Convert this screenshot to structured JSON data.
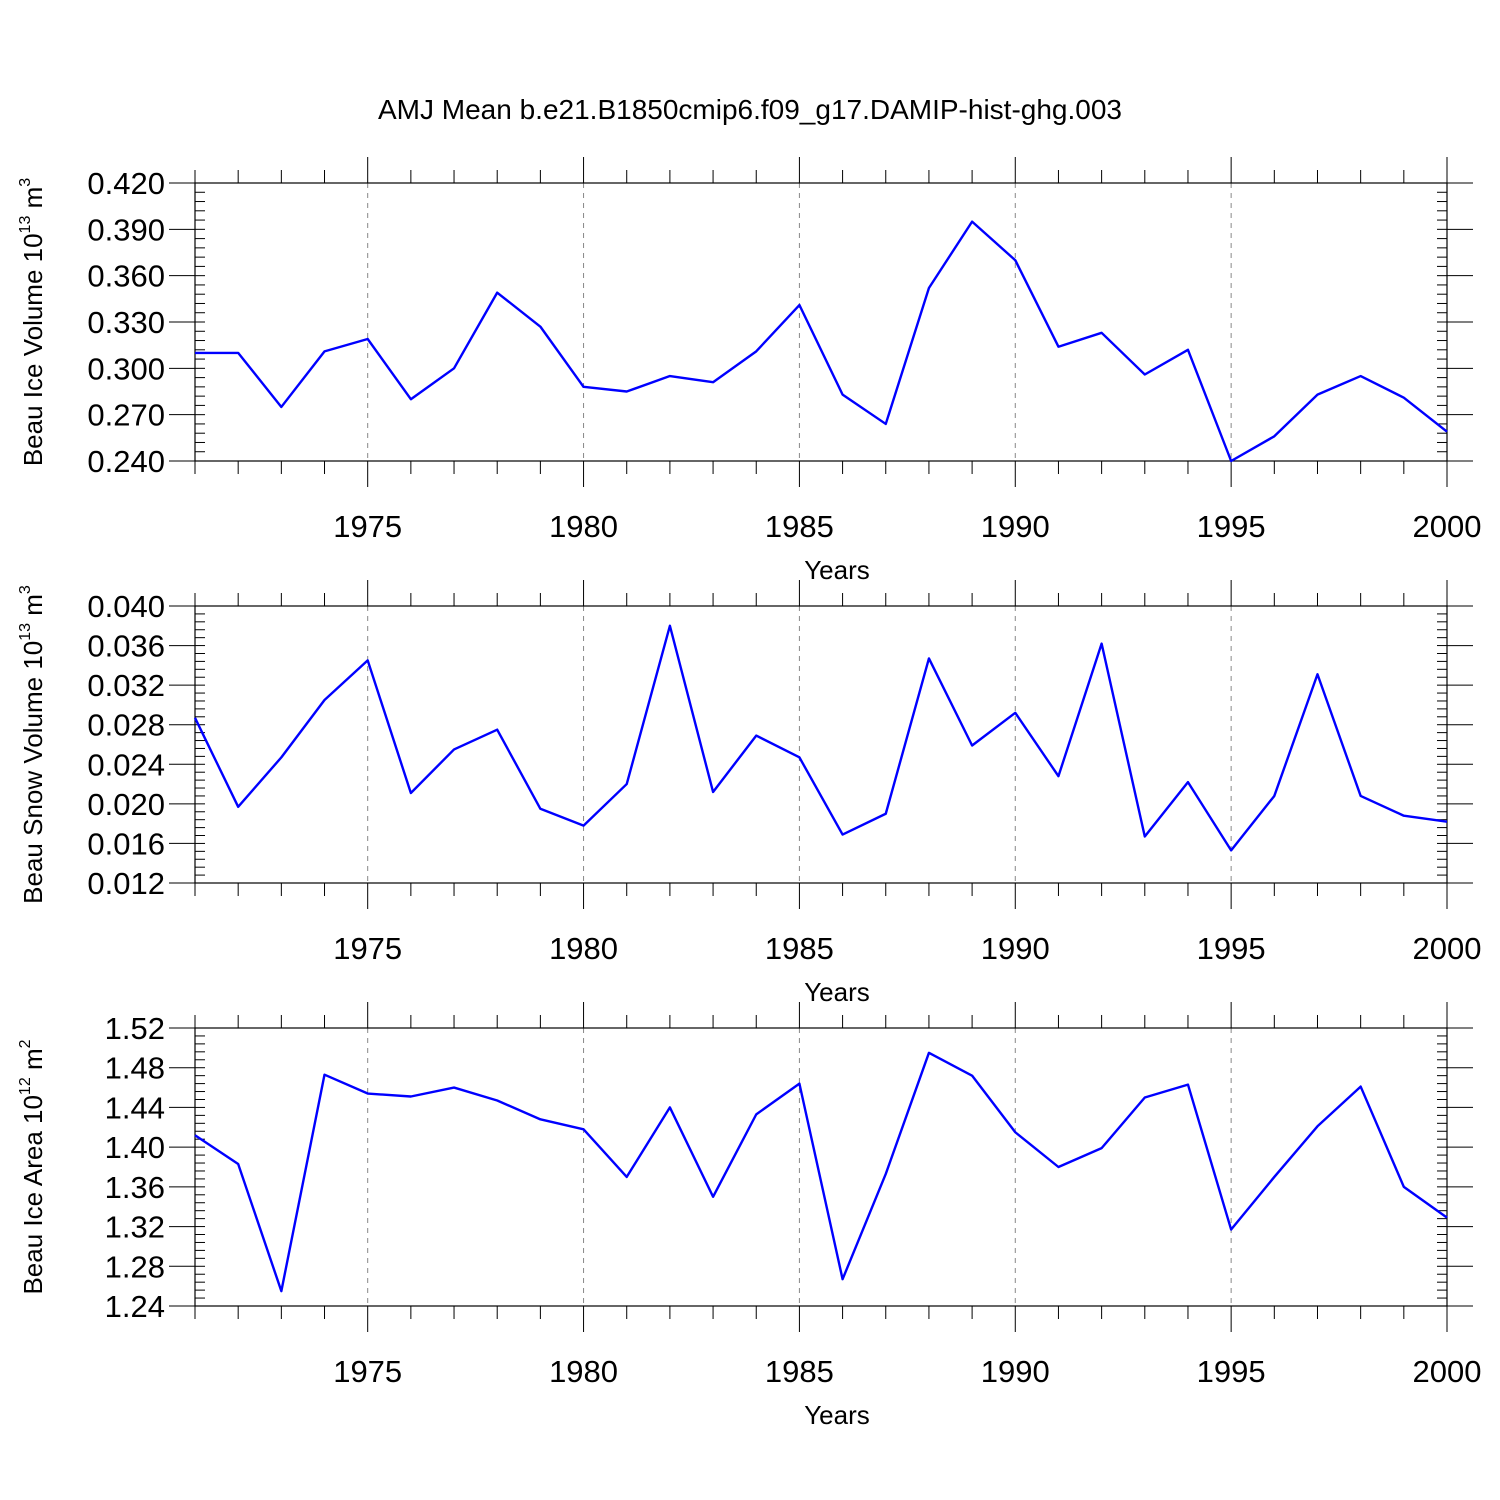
{
  "title": "AMJ Mean b.e21.B1850cmip6.f09_g17.DAMIP-hist-ghg.003",
  "colors": {
    "series": "#0000ff",
    "grid": "#888888",
    "axis": "#000000"
  },
  "chart_data": [
    {
      "type": "line",
      "name": "beau-ice-volume",
      "ylabel": {
        "main": "Beau Ice Volume 10",
        "sup1": "13",
        "unit": " m",
        "sup2": "3"
      },
      "xlabel": "Years",
      "xlim": [
        1971,
        2000
      ],
      "xticks": [
        1975,
        1980,
        1985,
        1990,
        1995,
        2000
      ],
      "xtick_labels": [
        "1975",
        "1980",
        "1985",
        "1990",
        "1995",
        "2000"
      ],
      "ylim": [
        0.24,
        0.42
      ],
      "yticks": [
        0.24,
        0.27,
        0.3,
        0.33,
        0.36,
        0.39,
        0.42
      ],
      "ytick_labels": [
        "0.240",
        "0.270",
        "0.300",
        "0.330",
        "0.360",
        "0.390",
        "0.420"
      ],
      "yminor": 0.006,
      "x": [
        1971,
        1972,
        1973,
        1974,
        1975,
        1976,
        1977,
        1978,
        1979,
        1980,
        1981,
        1982,
        1983,
        1984,
        1985,
        1986,
        1987,
        1988,
        1989,
        1990,
        1991,
        1992,
        1993,
        1994,
        1995,
        1996,
        1997,
        1998,
        1999,
        2000
      ],
      "values": [
        0.31,
        0.31,
        0.275,
        0.311,
        0.319,
        0.28,
        0.3,
        0.349,
        0.327,
        0.288,
        0.285,
        0.295,
        0.291,
        0.311,
        0.341,
        0.283,
        0.264,
        0.352,
        0.395,
        0.37,
        0.314,
        0.323,
        0.296,
        0.312,
        0.24,
        0.256,
        0.283,
        0.295,
        0.281,
        0.259
      ]
    },
    {
      "type": "line",
      "name": "beau-snow-volume",
      "ylabel": {
        "main": "Beau Snow Volume 10",
        "sup1": "13",
        "unit": " m",
        "sup2": "3"
      },
      "xlabel": "Years",
      "xlim": [
        1971,
        2000
      ],
      "xticks": [
        1975,
        1980,
        1985,
        1990,
        1995,
        2000
      ],
      "xtick_labels": [
        "1975",
        "1980",
        "1985",
        "1990",
        "1995",
        "2000"
      ],
      "ylim": [
        0.012,
        0.04
      ],
      "yticks": [
        0.012,
        0.016,
        0.02,
        0.024,
        0.028,
        0.032,
        0.036,
        0.04
      ],
      "ytick_labels": [
        "0.012",
        "0.016",
        "0.020",
        "0.024",
        "0.028",
        "0.032",
        "0.036",
        "0.040"
      ],
      "yminor": 0.0008,
      "x": [
        1971,
        1972,
        1973,
        1974,
        1975,
        1976,
        1977,
        1978,
        1979,
        1980,
        1981,
        1982,
        1983,
        1984,
        1985,
        1986,
        1987,
        1988,
        1989,
        1990,
        1991,
        1992,
        1993,
        1994,
        1995,
        1996,
        1997,
        1998,
        1999,
        2000
      ],
      "values": [
        0.0287,
        0.0197,
        0.0247,
        0.0305,
        0.0345,
        0.0211,
        0.0255,
        0.0275,
        0.0195,
        0.0178,
        0.022,
        0.038,
        0.0212,
        0.0269,
        0.0247,
        0.0169,
        0.019,
        0.0347,
        0.0259,
        0.0292,
        0.0228,
        0.0362,
        0.0167,
        0.0222,
        0.0153,
        0.0208,
        0.0331,
        0.0208,
        0.0188,
        0.0182
      ]
    },
    {
      "type": "line",
      "name": "beau-ice-area",
      "ylabel": {
        "main": "Beau Ice Area 10",
        "sup1": "12",
        "unit": " m",
        "sup2": "2"
      },
      "xlabel": "Years",
      "xlim": [
        1971,
        2000
      ],
      "xticks": [
        1975,
        1980,
        1985,
        1990,
        1995,
        2000
      ],
      "xtick_labels": [
        "1975",
        "1980",
        "1985",
        "1990",
        "1995",
        "2000"
      ],
      "ylim": [
        1.24,
        1.52
      ],
      "yticks": [
        1.24,
        1.28,
        1.32,
        1.36,
        1.4,
        1.44,
        1.48,
        1.52
      ],
      "ytick_labels": [
        "1.24",
        "1.28",
        "1.32",
        "1.36",
        "1.40",
        "1.44",
        "1.48",
        "1.52"
      ],
      "yminor": 0.008,
      "x": [
        1971,
        1972,
        1973,
        1974,
        1975,
        1976,
        1977,
        1978,
        1979,
        1980,
        1981,
        1982,
        1983,
        1984,
        1985,
        1986,
        1987,
        1988,
        1989,
        1990,
        1991,
        1992,
        1993,
        1994,
        1995,
        1996,
        1997,
        1998,
        1999,
        2000
      ],
      "values": [
        1.412,
        1.383,
        1.255,
        1.473,
        1.454,
        1.451,
        1.46,
        1.447,
        1.428,
        1.418,
        1.37,
        1.44,
        1.35,
        1.433,
        1.464,
        1.267,
        1.373,
        1.495,
        1.472,
        1.415,
        1.38,
        1.399,
        1.45,
        1.463,
        1.317,
        1.37,
        1.421,
        1.461,
        1.36,
        1.329
      ]
    }
  ]
}
